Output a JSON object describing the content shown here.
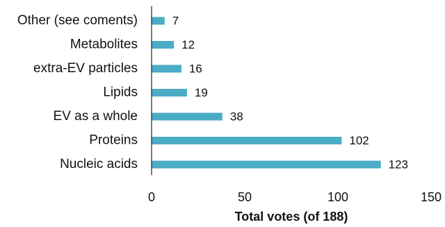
{
  "chart_data": {
    "type": "bar",
    "orientation": "horizontal",
    "categories": [
      "Other (see coments)",
      "Metabolites",
      "extra-EV particles",
      "Lipids",
      "EV as a whole",
      "Proteins",
      "Nucleic acids"
    ],
    "values": [
      7,
      12,
      16,
      19,
      38,
      102,
      123
    ],
    "value_labels": [
      "7",
      "12",
      "16",
      "19",
      "38",
      "102",
      "123"
    ],
    "xticks": [
      0,
      50,
      100,
      150
    ],
    "xtick_labels": [
      "0",
      "50",
      "100",
      "150"
    ],
    "xlim": [
      0,
      150
    ],
    "xlabel": "Total votes (of 188)",
    "ylabel": "",
    "title": "",
    "grid": false,
    "legend": false,
    "bar_color": "#4bacc6"
  }
}
